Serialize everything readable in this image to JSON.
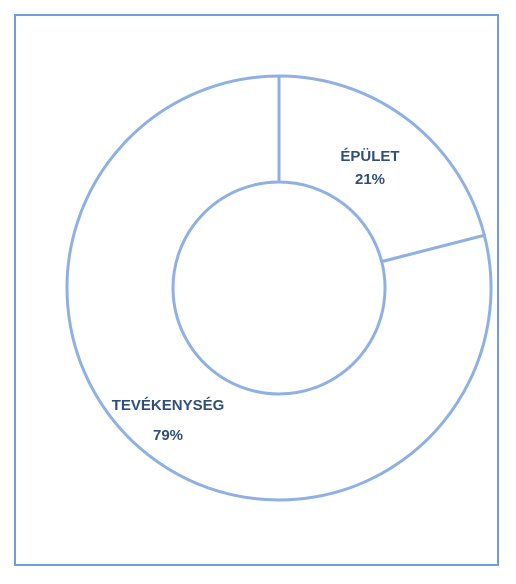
{
  "chart_data": {
    "type": "pie",
    "variant": "doughnut",
    "categories": [
      "ÉPÜLET",
      "TEVÉKENYSÉG"
    ],
    "values": [
      21,
      79
    ],
    "value_labels": [
      "21%",
      "79%"
    ],
    "title": "",
    "legend": "none",
    "colors": {
      "fill": "#ffffff",
      "stroke": "#8fb0e3",
      "label": "#2f4f7a",
      "frame": "#6f9be0"
    }
  }
}
